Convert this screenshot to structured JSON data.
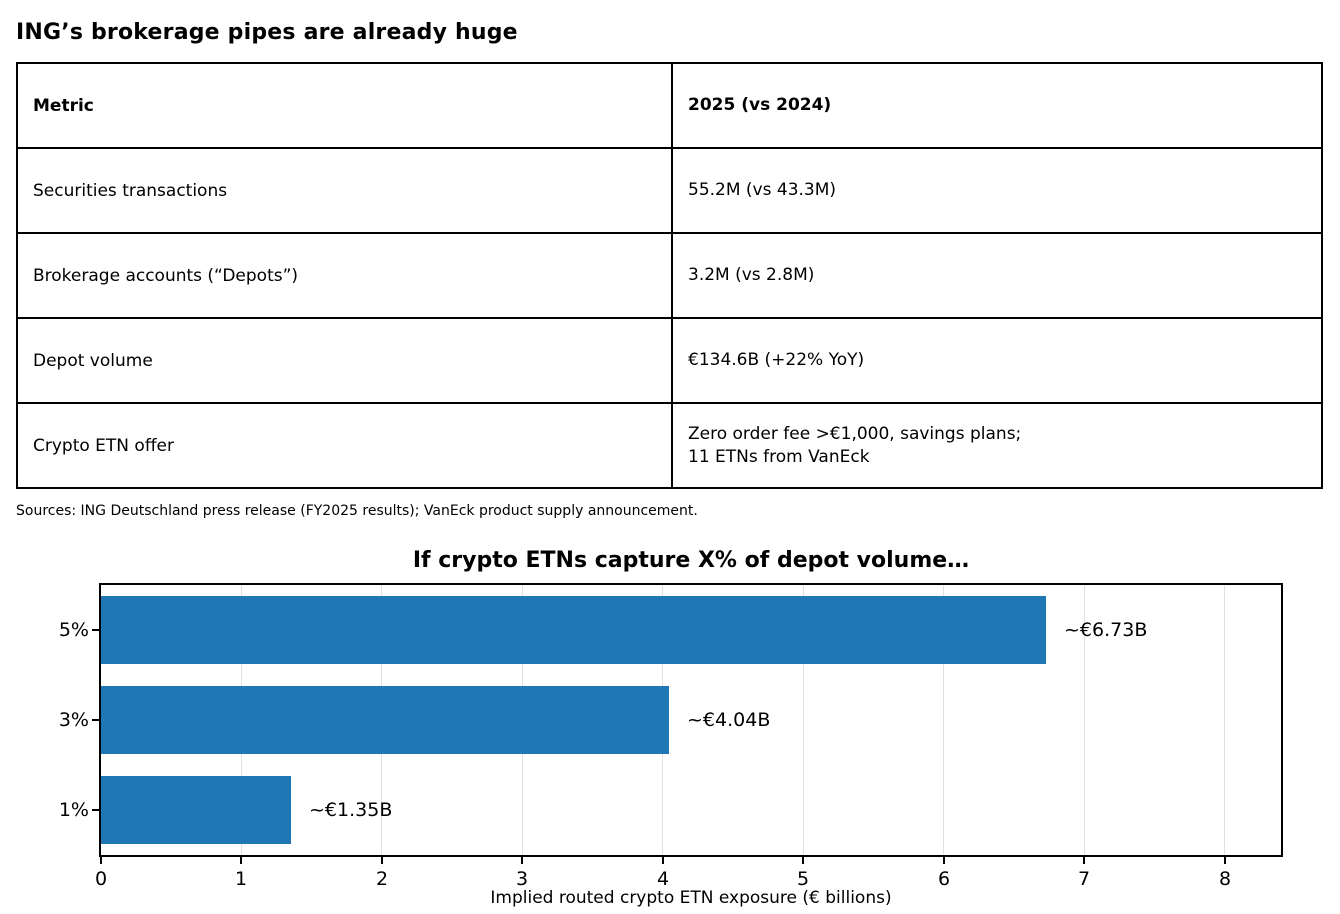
{
  "page": {
    "title": "ING’s brokerage pipes are already huge"
  },
  "table": {
    "headers": [
      "Metric",
      "2025 (vs 2024)"
    ],
    "rows": [
      {
        "metric": "Securities transactions",
        "value": "55.2M (vs 43.3M)"
      },
      {
        "metric": "Brokerage accounts (“Depots”)",
        "value": "3.2M (vs 2.8M)"
      },
      {
        "metric": "Depot volume",
        "value": "€134.6B (+22% YoY)"
      },
      {
        "metric": "Crypto ETN offer",
        "value": "Zero order fee >€1,000, savings plans;\n11 ETNs from VanEck"
      }
    ]
  },
  "sources": "Sources: ING Deutschland press release (FY2025 results); VanEck product supply announcement.",
  "chart_data": {
    "type": "bar",
    "orientation": "horizontal",
    "title": "If crypto ETNs capture X% of depot volume…",
    "categories": [
      "5%",
      "3%",
      "1%"
    ],
    "values": [
      6.73,
      4.04,
      1.35
    ],
    "bar_labels": [
      "~€6.73B",
      "~€4.04B",
      "~€1.35B"
    ],
    "xlabel": "Implied routed crypto ETN exposure (€ billions)",
    "xlim": [
      0,
      8.4
    ],
    "xticks": [
      0,
      1,
      2,
      3,
      4,
      5,
      6,
      7,
      8
    ],
    "grid": true,
    "legend": "none",
    "colors": {
      "bar": "#1f77b4",
      "grid": "#e0e0e0",
      "axis": "#000000",
      "text": "#000000"
    }
  }
}
